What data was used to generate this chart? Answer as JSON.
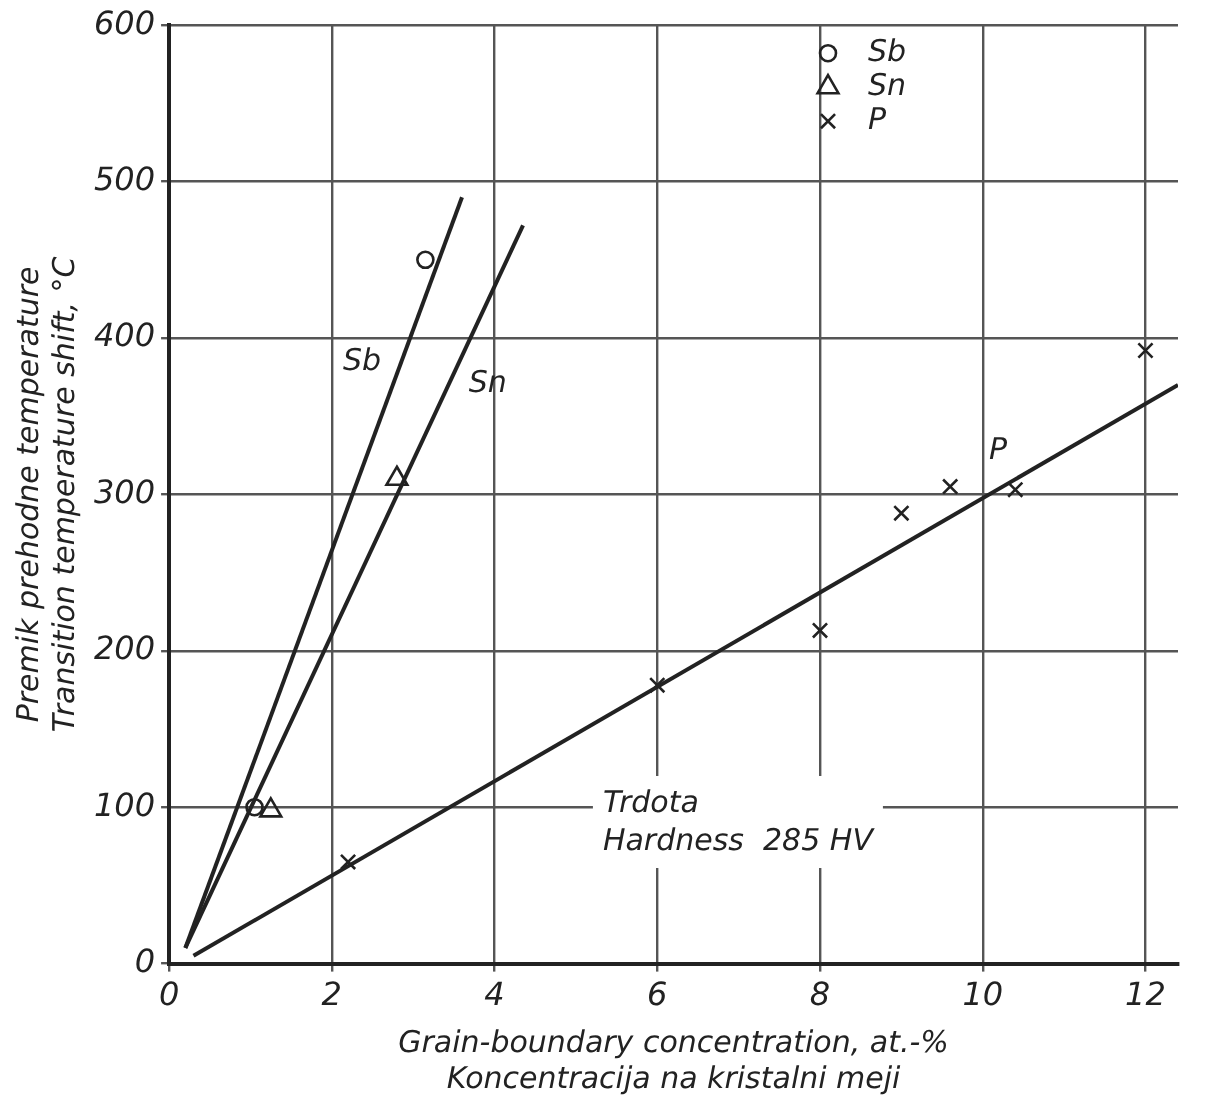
{
  "chart_data": {
    "type": "scatter",
    "xlabel": "Grain-boundary concentration, at.-%\nKoncentracija na kristalni meji",
    "ylabel": "Premik prehodne temperature\nTransition temperature shift, °C",
    "xlim": [
      0,
      12.4
    ],
    "xticks": [
      0,
      2,
      4,
      6,
      8,
      10,
      12
    ],
    "ylim": [
      0,
      600
    ],
    "yticks": [
      0,
      100,
      200,
      300,
      400,
      500,
      600
    ],
    "grid": true,
    "legend": "top right",
    "annotations": [
      "Trdota",
      "Hardness  285 HV"
    ],
    "series": [
      {
        "name": "Sb",
        "marker": "circle",
        "color": "#222222",
        "x": [
          1.05,
          3.15
        ],
        "values": [
          100,
          450
        ]
      },
      {
        "name": "Sn",
        "marker": "triangle",
        "color": "#222222",
        "x": [
          1.25,
          2.8
        ],
        "values": [
          98,
          310
        ]
      },
      {
        "name": "P",
        "marker": "cross",
        "color": "#222222",
        "x": [
          2.2,
          6.0,
          8.0,
          9.0,
          9.6,
          10.4,
          12.0
        ],
        "values": [
          65,
          178,
          213,
          288,
          305,
          303,
          392
        ]
      },
      {
        "name": "Sb",
        "type": "line",
        "marker": "none",
        "color": "#222222",
        "x": [
          0.2,
          3.6
        ],
        "values": [
          10,
          490
        ]
      },
      {
        "name": "Sn",
        "type": "line",
        "marker": "none",
        "color": "#222222",
        "x": [
          0.2,
          4.35
        ],
        "values": [
          10,
          472
        ]
      },
      {
        "name": "P",
        "type": "line",
        "marker": "none",
        "color": "#222222",
        "x": [
          0.3,
          12.4
        ],
        "values": [
          5,
          370
        ]
      }
    ]
  }
}
